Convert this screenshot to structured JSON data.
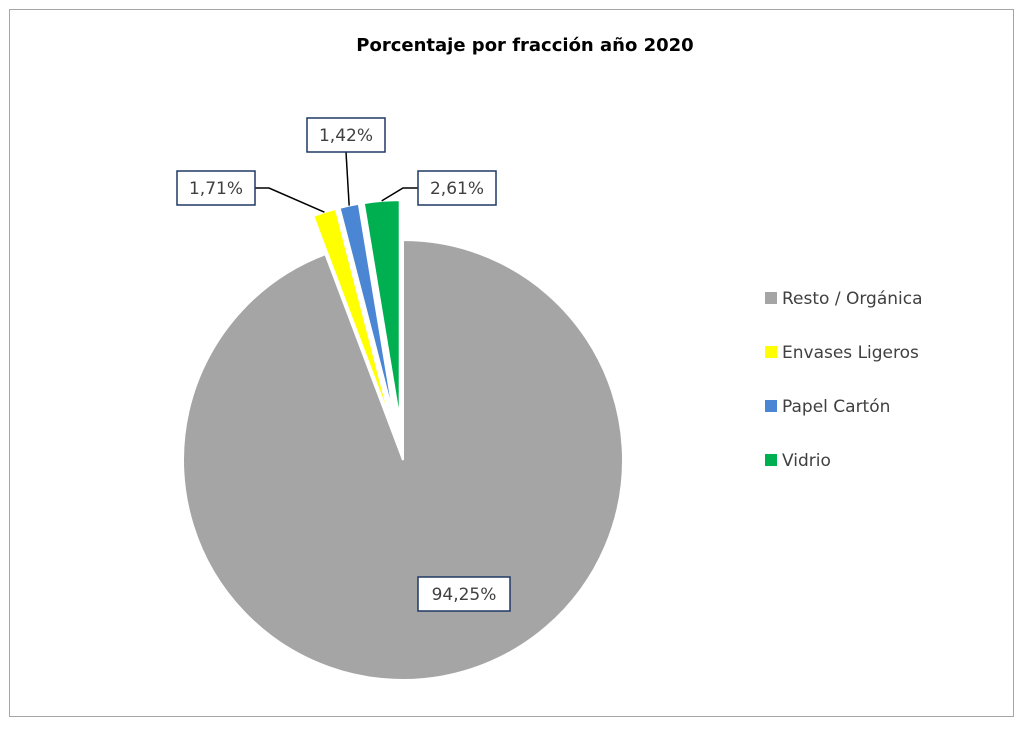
{
  "chart_data": {
    "type": "pie",
    "title": "Porcentaje por fracción año 2020",
    "categories": [
      "Resto / Orgánica",
      "Envases Ligeros",
      "Papel Cartón",
      "Vidrio"
    ],
    "values": [
      94.25,
      1.71,
      1.42,
      2.61
    ],
    "value_labels": [
      "94,25%",
      "1,71%",
      "1,42%",
      "2,61%"
    ],
    "colors": [
      "#a5a5a5",
      "#ffff00",
      "#4a86d4",
      "#00b050"
    ],
    "legend": "right"
  }
}
